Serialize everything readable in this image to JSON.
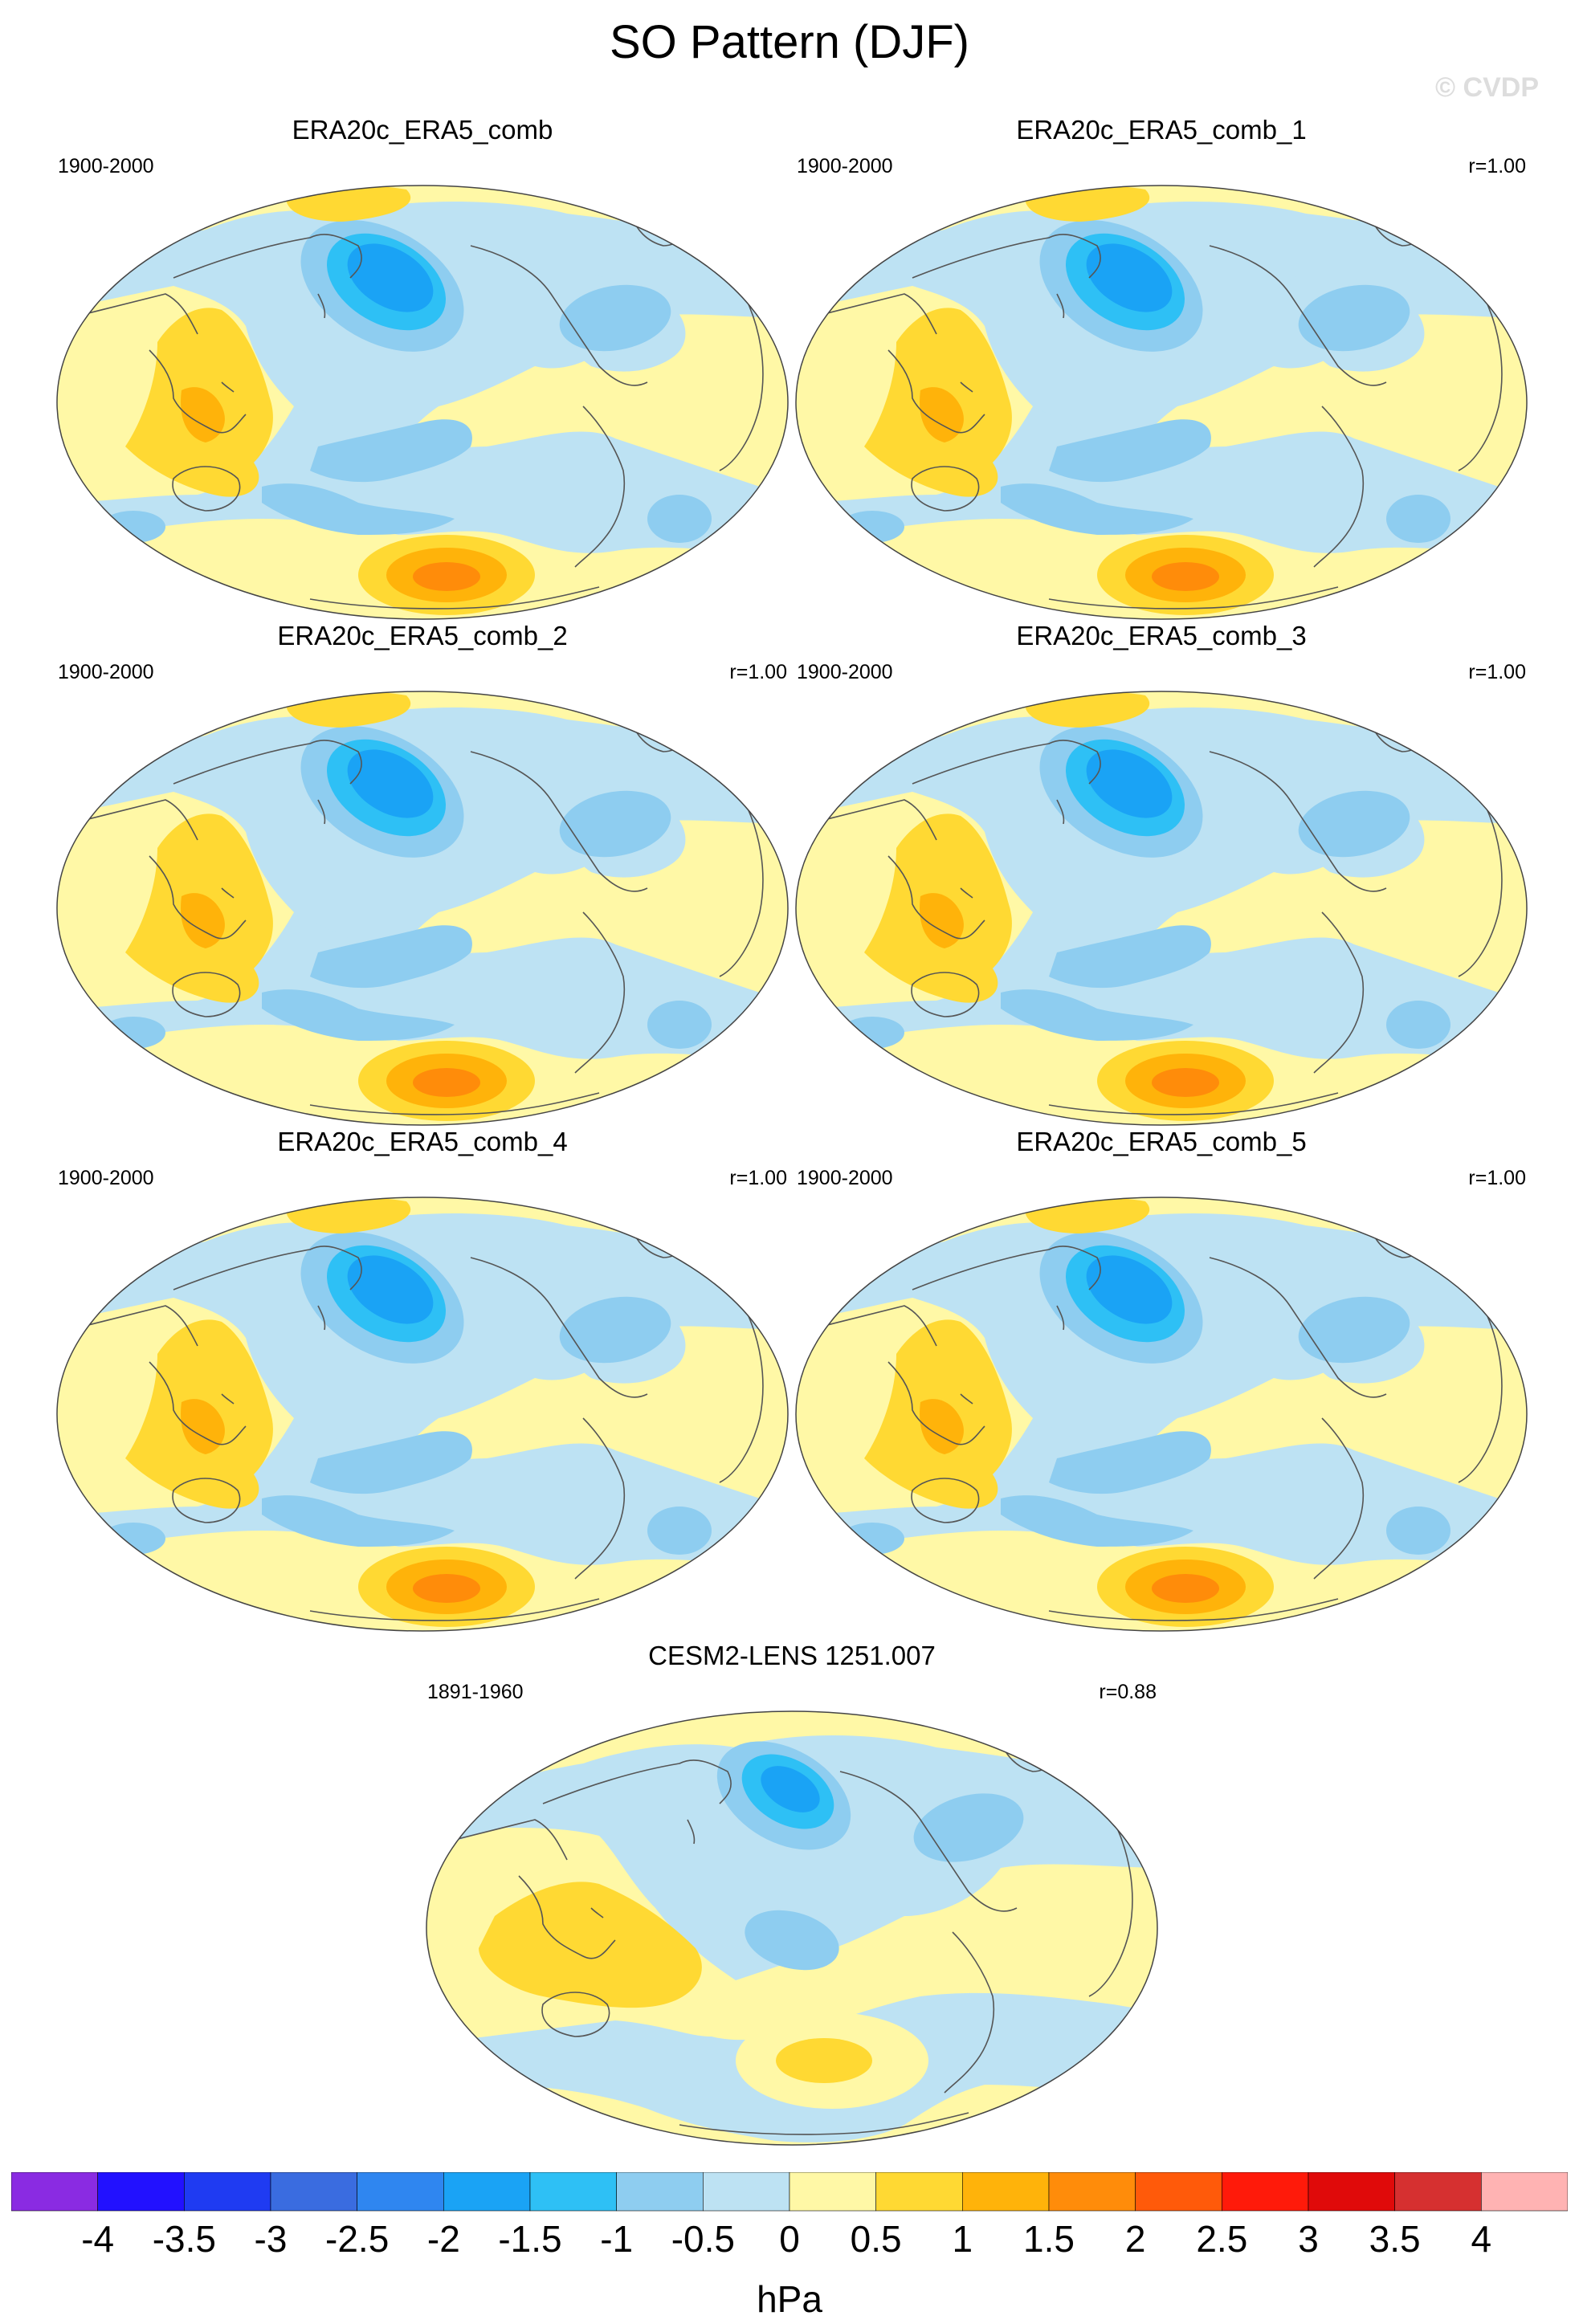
{
  "figure": {
    "title": "SO Pattern (DJF)",
    "watermark": "© CVDP",
    "units": "hPa"
  },
  "colors": {
    "levels": [
      "#8a2be2",
      "#2211ff",
      "#1f3bf2",
      "#3a6ce0",
      "#2f86f0",
      "#1aa3f5",
      "#2ec0f5",
      "#8ecdf0",
      "#bde2f3",
      "#fff8a6",
      "#ffd933",
      "#ffb30a",
      "#ff8c0a",
      "#ff5a0a",
      "#ff1a0a",
      "#e00a0a",
      "#d63030",
      "#ffb3b3"
    ],
    "land_outline": "#555555",
    "background": "#ffffff"
  },
  "colorbar": {
    "ticks": [
      "-4",
      "-3.5",
      "-3",
      "-2.5",
      "-2",
      "-1.5",
      "-1",
      "-0.5",
      "0",
      "0.5",
      "1",
      "1.5",
      "2",
      "2.5",
      "3",
      "3.5",
      "4"
    ]
  },
  "panels": [
    {
      "title": "ERA20c_ERA5_comb",
      "years": "1900-2000",
      "r": "",
      "variant": "obs"
    },
    {
      "title": "ERA20c_ERA5_comb_1",
      "years": "1900-2000",
      "r": "r=1.00",
      "variant": "obs"
    },
    {
      "title": "ERA20c_ERA5_comb_2",
      "years": "1900-2000",
      "r": "r=1.00",
      "variant": "obs"
    },
    {
      "title": "ERA20c_ERA5_comb_3",
      "years": "1900-2000",
      "r": "r=1.00",
      "variant": "obs"
    },
    {
      "title": "ERA20c_ERA5_comb_4",
      "years": "1900-2000",
      "r": "r=1.00",
      "variant": "obs"
    },
    {
      "title": "ERA20c_ERA5_comb_5",
      "years": "1900-2000",
      "r": "r=1.00",
      "variant": "obs"
    },
    {
      "title": "CESM2-LENS 1251.007",
      "years": "1891-1960",
      "r": "r=0.88",
      "variant": "model"
    }
  ]
}
